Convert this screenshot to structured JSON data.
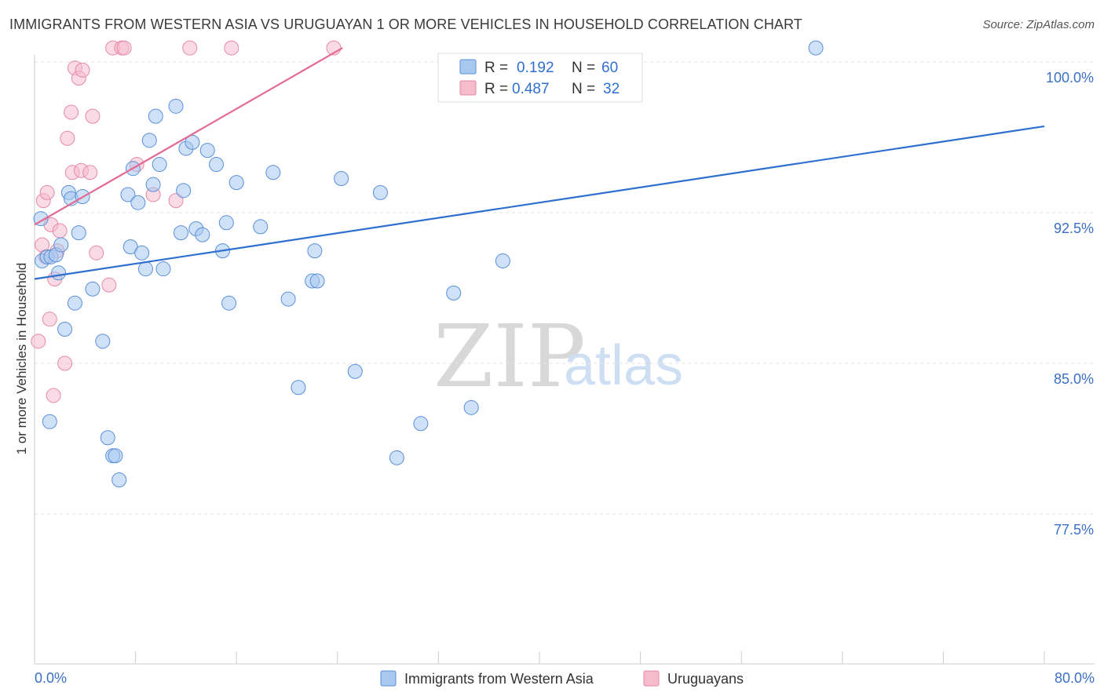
{
  "title": "IMMIGRANTS FROM WESTERN ASIA VS URUGUAYAN 1 OR MORE VEHICLES IN HOUSEHOLD CORRELATION CHART",
  "source": "Source: ZipAtlas.com",
  "watermark": {
    "zip": "ZIP",
    "atlas": "atlas"
  },
  "chart_data": {
    "type": "scatter",
    "title": "IMMIGRANTS FROM WESTERN ASIA VS URUGUAYAN 1 OR MORE VEHICLES IN HOUSEHOLD CORRELATION CHART",
    "xlabel": "",
    "ylabel": "1 or more Vehicles in Household",
    "xlim": [
      0,
      80
    ],
    "ylim": [
      70.0,
      100.0
    ],
    "x_tick_labels": [
      "0.0%",
      "80.0%"
    ],
    "y_ticks": [
      {
        "value": 100.0,
        "label": "100.0%"
      },
      {
        "value": 92.5,
        "label": "92.5%"
      },
      {
        "value": 85.0,
        "label": "85.0%"
      },
      {
        "value": 77.5,
        "label": "77.5%"
      }
    ],
    "grid": true,
    "legend_position": "top-center",
    "series": [
      {
        "name": "Immigrants from Western Asia",
        "color": "#a8c8f0",
        "stroke": "#5a8fd8",
        "line_color": "#2f6fd0",
        "R": "0.192",
        "N": "60",
        "trend": {
          "x0": 0,
          "y0": 89.2,
          "x1": 80,
          "y1": 96.8
        },
        "points": [
          [
            0.5,
            92.2
          ],
          [
            0.6,
            90.1
          ],
          [
            1.0,
            90.3
          ],
          [
            1.2,
            82.1
          ],
          [
            1.3,
            90.3
          ],
          [
            1.7,
            90.4
          ],
          [
            1.9,
            89.5
          ],
          [
            2.1,
            90.9
          ],
          [
            2.4,
            86.7
          ],
          [
            2.7,
            93.5
          ],
          [
            2.9,
            93.2
          ],
          [
            3.2,
            88.0
          ],
          [
            3.5,
            91.5
          ],
          [
            3.8,
            93.3
          ],
          [
            4.6,
            88.7
          ],
          [
            5.4,
            86.1
          ],
          [
            5.8,
            81.3
          ],
          [
            6.2,
            80.4
          ],
          [
            6.4,
            80.4
          ],
          [
            6.7,
            79.2
          ],
          [
            7.4,
            93.4
          ],
          [
            7.6,
            90.8
          ],
          [
            7.8,
            94.7
          ],
          [
            8.2,
            93.0
          ],
          [
            8.5,
            90.5
          ],
          [
            8.8,
            89.7
          ],
          [
            9.1,
            96.1
          ],
          [
            9.4,
            93.9
          ],
          [
            9.6,
            97.3
          ],
          [
            9.9,
            94.9
          ],
          [
            10.2,
            89.7
          ],
          [
            11.2,
            97.8
          ],
          [
            11.6,
            91.5
          ],
          [
            11.8,
            93.6
          ],
          [
            12.0,
            95.7
          ],
          [
            12.5,
            96.0
          ],
          [
            12.8,
            91.7
          ],
          [
            13.3,
            91.4
          ],
          [
            13.7,
            95.6
          ],
          [
            14.4,
            94.9
          ],
          [
            14.9,
            90.6
          ],
          [
            15.2,
            92.0
          ],
          [
            15.4,
            88.0
          ],
          [
            16.0,
            94.0
          ],
          [
            17.9,
            91.8
          ],
          [
            18.9,
            94.5
          ],
          [
            20.1,
            88.2
          ],
          [
            20.9,
            83.8
          ],
          [
            22.0,
            89.1
          ],
          [
            22.2,
            90.6
          ],
          [
            22.4,
            89.1
          ],
          [
            24.3,
            94.2
          ],
          [
            25.4,
            84.6
          ],
          [
            27.4,
            93.5
          ],
          [
            28.7,
            80.3
          ],
          [
            30.6,
            82.0
          ],
          [
            33.2,
            88.5
          ],
          [
            34.6,
            82.8
          ],
          [
            37.1,
            90.1
          ],
          [
            61.9,
            100.7
          ]
        ]
      },
      {
        "name": "Uruguayans",
        "color": "#f6bccd",
        "stroke": "#e58aa5",
        "line_color": "#e46b93",
        "R": "0.487",
        "N": "32",
        "trend": {
          "x0": 0,
          "y0": 91.9,
          "x1": 24.4,
          "y1": 100.7
        },
        "points": [
          [
            0.3,
            86.1
          ],
          [
            0.6,
            90.9
          ],
          [
            0.7,
            93.1
          ],
          [
            0.9,
            90.3
          ],
          [
            1.0,
            93.5
          ],
          [
            1.2,
            87.2
          ],
          [
            1.3,
            91.9
          ],
          [
            1.5,
            83.4
          ],
          [
            1.6,
            89.2
          ],
          [
            1.8,
            90.6
          ],
          [
            2.0,
            91.6
          ],
          [
            2.4,
            85.0
          ],
          [
            2.6,
            96.2
          ],
          [
            2.9,
            97.5
          ],
          [
            3.0,
            94.5
          ],
          [
            3.2,
            99.7
          ],
          [
            3.5,
            99.2
          ],
          [
            3.7,
            94.6
          ],
          [
            3.8,
            99.6
          ],
          [
            4.4,
            94.5
          ],
          [
            4.6,
            97.3
          ],
          [
            4.9,
            90.5
          ],
          [
            5.9,
            88.9
          ],
          [
            6.2,
            100.7
          ],
          [
            6.9,
            100.7
          ],
          [
            7.1,
            100.7
          ],
          [
            8.1,
            94.9
          ],
          [
            9.4,
            93.4
          ],
          [
            11.2,
            93.1
          ],
          [
            12.3,
            100.7
          ],
          [
            15.6,
            100.7
          ],
          [
            23.7,
            100.7
          ]
        ]
      }
    ]
  },
  "legend": {
    "r_label": "R =",
    "n_label": "N ="
  }
}
